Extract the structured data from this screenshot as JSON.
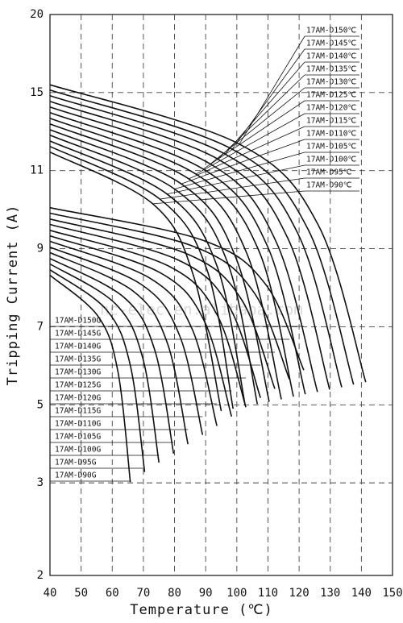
{
  "chart_data": {
    "type": "line",
    "y_label": "Tripping Current (A)",
    "x_label": "Temperature (℃)",
    "watermark": "hc-elec.en.alibaba.com",
    "color": "#111111",
    "grid": true,
    "xlim": [
      40,
      150
    ],
    "xticks": [
      40,
      50,
      60,
      70,
      80,
      90,
      100,
      110,
      120,
      130,
      140,
      150
    ],
    "ylim": [
      2,
      20
    ],
    "yticks": [
      20,
      15,
      11,
      9,
      7,
      5,
      3,
      2
    ],
    "series": [
      {
        "name": "17AM-D150℃",
        "x": [
          40,
          100.8,
          126.2,
          141.4
        ],
        "values": [
          15.5,
          12.36,
          9.6,
          5.58
        ]
      },
      {
        "name": "17AM-D145℃",
        "x": [
          40,
          98.5,
          122.9,
          137.5
        ],
        "values": [
          15.16,
          12.1,
          9.49,
          5.52
        ]
      },
      {
        "name": "17AM-D140℃",
        "x": [
          40,
          96.2,
          119.6,
          133.7
        ],
        "values": [
          14.84,
          11.85,
          9.39,
          5.45
        ]
      },
      {
        "name": "17AM-D135℃",
        "x": [
          40,
          93.9,
          116.3,
          129.8
        ],
        "values": [
          14.55,
          11.59,
          9.28,
          5.39
        ]
      },
      {
        "name": "17AM-D130℃",
        "x": [
          40,
          91.5,
          112.6,
          125.9
        ],
        "values": [
          14.26,
          11.34,
          9.18,
          5.33
        ]
      },
      {
        "name": "17AM-D125℃",
        "x": [
          40,
          89.2,
          109.8,
          122.0
        ],
        "values": [
          13.97,
          11.08,
          9.07,
          5.27
        ]
      },
      {
        "name": "17AM-D120℃",
        "x": [
          40,
          86.9,
          107.0,
          118.2
        ],
        "values": [
          13.68,
          10.91,
          8.96,
          5.21
        ]
      },
      {
        "name": "17AM-D115℃",
        "x": [
          40,
          84.6,
          103.3,
          114.3
        ],
        "values": [
          13.39,
          10.79,
          8.86,
          5.14
        ]
      },
      {
        "name": "17AM-D110℃",
        "x": [
          40,
          82.2,
          99.8,
          110.4
        ],
        "values": [
          13.1,
          10.66,
          8.75,
          5.08
        ]
      },
      {
        "name": "17AM-D105℃",
        "x": [
          40,
          80.0,
          97.0,
          106.6
        ],
        "values": [
          12.82,
          10.53,
          8.65,
          5.02
        ]
      },
      {
        "name": "17AM-D100℃",
        "x": [
          40,
          77.6,
          93.7,
          102.7
        ],
        "values": [
          12.52,
          10.4,
          8.54,
          4.98
        ]
      },
      {
        "name": "17AM-D95℃",
        "x": [
          40,
          75.3,
          90.5,
          98.8
        ],
        "values": [
          12.24,
          10.27,
          8.44,
          4.9
        ]
      },
      {
        "name": "17AM-D90℃",
        "x": [
          40,
          73.0,
          86.0,
          95.0
        ],
        "values": [
          11.95,
          10.15,
          8.33,
          4.84
        ]
      },
      {
        "name": "17AM-D150G",
        "x": [
          40,
          88.9,
          109.3,
          121.5
        ],
        "values": [
          10.05,
          9.22,
          8.08,
          5.89
        ]
      },
      {
        "name": "17AM-D145G",
        "x": [
          40,
          86.1,
          105.4,
          116.9
        ],
        "values": [
          9.91,
          9.06,
          7.89,
          5.65
        ]
      },
      {
        "name": "17AM-D140G",
        "x": [
          40,
          83.3,
          101.4,
          112.2
        ],
        "values": [
          9.76,
          8.89,
          7.71,
          5.41
        ]
      },
      {
        "name": "17AM-D135G",
        "x": [
          40,
          80.6,
          97.5,
          107.6
        ],
        "values": [
          9.62,
          8.73,
          7.52,
          5.18
        ]
      },
      {
        "name": "17AM-D130G",
        "x": [
          40,
          77.7,
          93.5,
          102.9
        ],
        "values": [
          9.47,
          8.57,
          7.33,
          4.94
        ]
      },
      {
        "name": "17AM-D125G",
        "x": [
          40,
          75.0,
          89.6,
          98.3
        ],
        "values": [
          9.33,
          8.4,
          7.14,
          4.7
        ]
      },
      {
        "name": "17AM-D120G",
        "x": [
          40,
          72.2,
          85.6,
          93.6
        ],
        "values": [
          9.19,
          8.24,
          6.95,
          4.46
        ]
      },
      {
        "name": "17AM-D115G",
        "x": [
          40,
          69.4,
          81.7,
          89.0
        ],
        "values": [
          9.04,
          8.08,
          6.76,
          4.23
        ]
      },
      {
        "name": "17AM-D110G",
        "x": [
          40,
          66.6,
          77.7,
          84.3
        ],
        "values": [
          8.9,
          7.92,
          6.58,
          3.99
        ]
      },
      {
        "name": "17AM-D105G",
        "x": [
          40,
          63.8,
          73.7,
          79.7
        ],
        "values": [
          8.75,
          7.75,
          6.39,
          3.75
        ]
      },
      {
        "name": "17AM-D100G",
        "x": [
          40,
          61.0,
          69.8,
          75.0
        ],
        "values": [
          8.61,
          7.59,
          6.2,
          3.52
        ]
      },
      {
        "name": "17AM-D95G",
        "x": [
          40,
          58.2,
          65.8,
          70.4
        ],
        "values": [
          8.46,
          7.43,
          6.01,
          3.28
        ]
      },
      {
        "name": "17AM-D90G",
        "x": [
          40,
          55.5,
          61.9,
          65.8
        ],
        "values": [
          8.32,
          7.26,
          5.82,
          3.02
        ]
      }
    ]
  }
}
